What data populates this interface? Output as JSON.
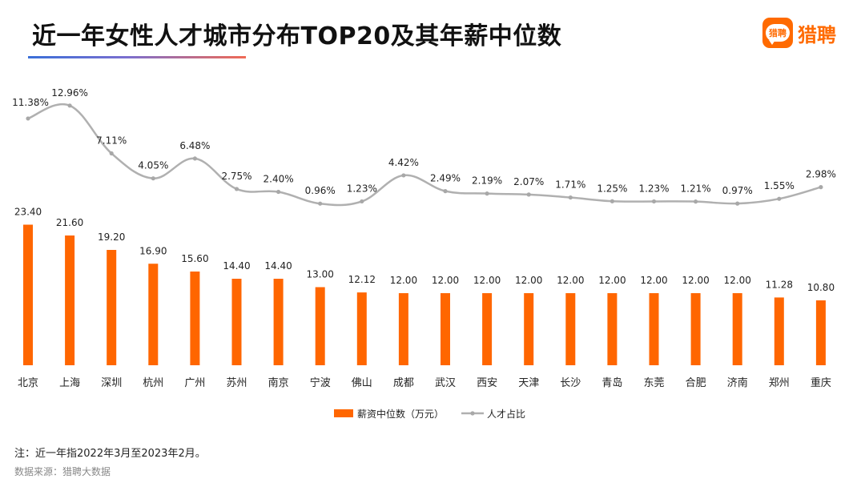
{
  "title": "近一年女性人才城市分布TOP20及其年薪中位数",
  "brand": {
    "name": "猎聘",
    "badge_text": "猎聘",
    "color": "#ff6a00"
  },
  "note": "注：近一年指2022年3月至2023年2月。",
  "source": "数据来源：猎聘大数据",
  "chart_data": {
    "type": "bar+line",
    "title": "近一年女性人才城市分布TOP20及其年薪中位数",
    "categories": [
      "北京",
      "上海",
      "深圳",
      "杭州",
      "广州",
      "苏州",
      "南京",
      "宁波",
      "佛山",
      "成都",
      "武汉",
      "西安",
      "天津",
      "长沙",
      "青岛",
      "东莞",
      "合肥",
      "济南",
      "郑州",
      "重庆"
    ],
    "series": [
      {
        "name": "薪资中位数（万元）",
        "type": "bar",
        "color": "#ff6600",
        "values": [
          23.4,
          21.6,
          19.2,
          16.9,
          15.6,
          14.4,
          14.4,
          13.0,
          12.12,
          12.0,
          12.0,
          12.0,
          12.0,
          12.0,
          12.0,
          12.0,
          12.0,
          12.0,
          11.28,
          10.8
        ],
        "labels": [
          "23.40",
          "21.60",
          "19.20",
          "16.90",
          "15.60",
          "14.40",
          "14.40",
          "13.00",
          "12.12",
          "12.00",
          "12.00",
          "12.00",
          "12.00",
          "12.00",
          "12.00",
          "12.00",
          "12.00",
          "12.00",
          "11.28",
          "10.80"
        ]
      },
      {
        "name": "人才占比",
        "type": "line",
        "color": "#b0b0b0",
        "values": [
          11.38,
          12.96,
          7.11,
          4.05,
          6.48,
          2.75,
          2.4,
          0.96,
          1.23,
          4.42,
          2.49,
          2.19,
          2.07,
          1.71,
          1.25,
          1.23,
          1.21,
          0.97,
          1.55,
          2.98
        ],
        "labels": [
          "11.38%",
          "12.96%",
          "7.11%",
          "4.05%",
          "6.48%",
          "2.75%",
          "2.40%",
          "0.96%",
          "1.23%",
          "4.42%",
          "2.49%",
          "2.19%",
          "2.07%",
          "1.71%",
          "1.25%",
          "1.23%",
          "1.21%",
          "0.97%",
          "1.55%",
          "2.98%"
        ]
      }
    ],
    "bar_range": [
      0,
      25
    ],
    "line_range": [
      0,
      14
    ],
    "legend_position": "bottom-center",
    "grid": false
  }
}
